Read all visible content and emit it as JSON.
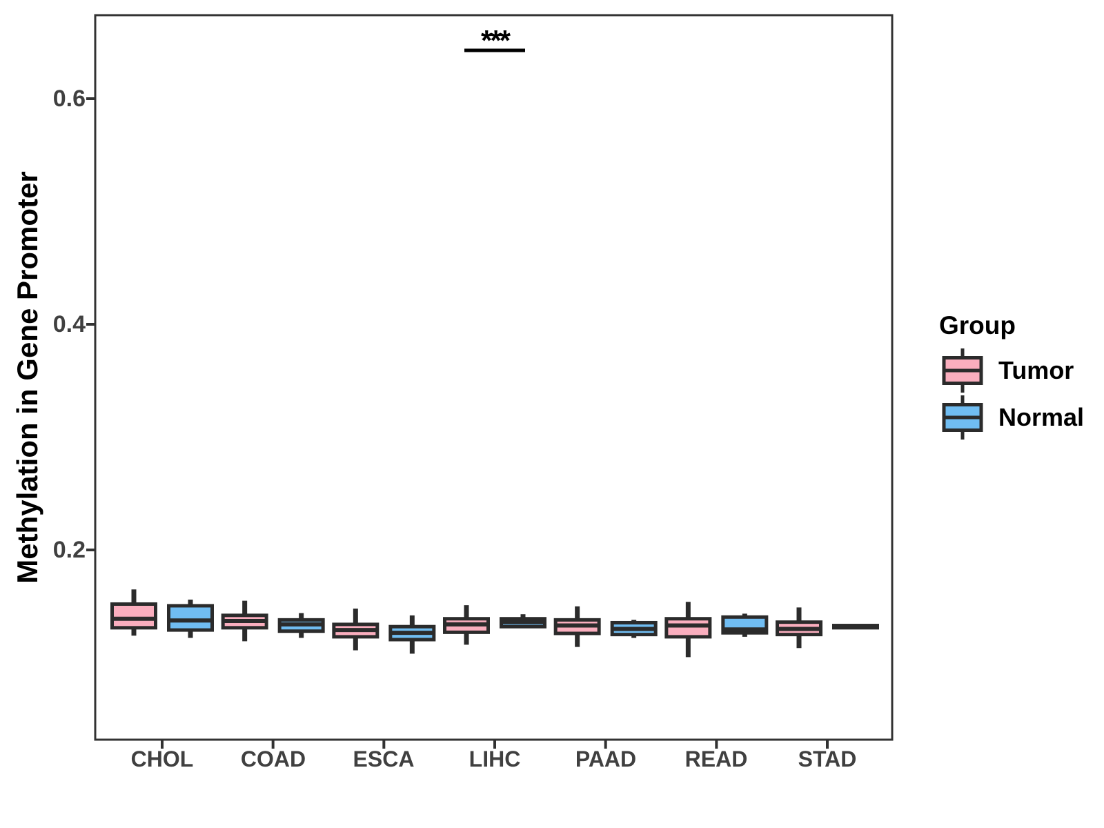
{
  "chart_data": {
    "type": "boxplot",
    "title": "",
    "xlabel": "",
    "ylabel": "Methylation in Gene Promoter",
    "categories": [
      "CHOL",
      "COAD",
      "ESCA",
      "LIHC",
      "PAAD",
      "READ",
      "STAD"
    ],
    "groups": [
      "Tumor",
      "Normal"
    ],
    "y_axis": {
      "tick_labels": [
        "0.2",
        "0.4",
        "0.6"
      ],
      "tick_values": [
        0.2,
        0.4,
        0.6
      ],
      "ylim": [
        0.032,
        0.674
      ],
      "grid": "off"
    },
    "legend": {
      "title": "Group",
      "position": "right",
      "items": [
        {
          "label": "Tumor",
          "color": "#FAAEBE"
        },
        {
          "label": "Normal",
          "color": "#70BDF2"
        }
      ]
    },
    "significance": [
      {
        "category": "LIHC",
        "label": "***"
      }
    ],
    "series": [
      {
        "name": "Tumor",
        "color": "#FAAEBE",
        "stats": [
          {
            "category": "CHOL",
            "min": 0.124,
            "q1": 0.131,
            "median": 0.139,
            "q3": 0.152,
            "max": 0.165
          },
          {
            "category": "COAD",
            "min": 0.119,
            "q1": 0.131,
            "median": 0.137,
            "q3": 0.142,
            "max": 0.155
          },
          {
            "category": "ESCA",
            "min": 0.111,
            "q1": 0.123,
            "median": 0.129,
            "q3": 0.134,
            "max": 0.148
          },
          {
            "category": "LIHC",
            "min": 0.116,
            "q1": 0.127,
            "median": 0.134,
            "q3": 0.139,
            "max": 0.151
          },
          {
            "category": "PAAD",
            "min": 0.114,
            "q1": 0.126,
            "median": 0.133,
            "q3": 0.138,
            "max": 0.15
          },
          {
            "category": "READ",
            "min": 0.105,
            "q1": 0.123,
            "median": 0.133,
            "q3": 0.139,
            "max": 0.154
          },
          {
            "category": "STAD",
            "min": 0.113,
            "q1": 0.125,
            "median": 0.13,
            "q3": 0.136,
            "max": 0.149
          }
        ]
      },
      {
        "name": "Normal",
        "color": "#70BDF2",
        "stats": [
          {
            "category": "CHOL",
            "min": 0.122,
            "q1": 0.129,
            "median": 0.1375,
            "q3": 0.1505,
            "max": 0.156
          },
          {
            "category": "COAD",
            "min": 0.122,
            "q1": 0.128,
            "median": 0.134,
            "q3": 0.138,
            "max": 0.144
          },
          {
            "category": "ESCA",
            "min": 0.108,
            "q1": 0.1205,
            "median": 0.1265,
            "q3": 0.132,
            "max": 0.142
          },
          {
            "category": "LIHC",
            "min": 0.131,
            "q1": 0.132,
            "median": 0.136,
            "q3": 0.139,
            "max": 0.143
          },
          {
            "category": "PAAD",
            "min": 0.122,
            "q1": 0.125,
            "median": 0.13,
            "q3": 0.1355,
            "max": 0.138
          },
          {
            "category": "READ",
            "min": 0.123,
            "q1": 0.1265,
            "median": 0.1295,
            "q3": 0.1405,
            "max": 0.1435
          },
          {
            "category": "STAD",
            "min": 0.13,
            "q1": 0.131,
            "median": 0.1315,
            "q3": 0.133,
            "max": 0.134
          }
        ]
      }
    ]
  }
}
